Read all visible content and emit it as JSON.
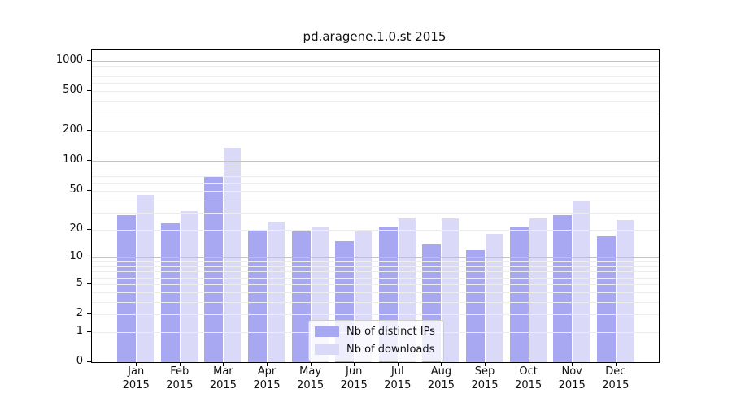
{
  "title": "pd.aragene.1.0.st 2015",
  "colors": {
    "distinct_ips_bar": "#a8a8f2",
    "downloads_bar": "#dadaf8",
    "major_gridline": "#c3c3c3",
    "minor_gridline": "#ededed",
    "axis_spine": "#000000"
  },
  "legend": {
    "items": [
      {
        "label": "Nb of distinct IPs",
        "series": "ips"
      },
      {
        "label": "Nb of downloads",
        "series": "downloads"
      }
    ]
  },
  "y_axis": {
    "tick_labels": [
      "0",
      "1",
      "2",
      "5",
      "10",
      "20",
      "50",
      "100",
      "200",
      "500",
      "1000"
    ],
    "tick_values": [
      0,
      1,
      2,
      5,
      10,
      20,
      50,
      100,
      200,
      500,
      1000
    ]
  },
  "x_axis": {
    "year": "2015",
    "months": [
      "Jan",
      "Feb",
      "Mar",
      "Apr",
      "May",
      "Jun",
      "Jul",
      "Aug",
      "Sep",
      "Oct",
      "Nov",
      "Dec"
    ]
  },
  "chart_data": {
    "type": "bar",
    "title": "pd.aragene.1.0.st 2015",
    "categories": [
      "Jan 2015",
      "Feb 2015",
      "Mar 2015",
      "Apr 2015",
      "May 2015",
      "Jun 2015",
      "Jul 2015",
      "Aug 2015",
      "Sep 2015",
      "Oct 2015",
      "Nov 2015",
      "Dec 2015"
    ],
    "series": [
      {
        "name": "Nb of distinct IPs",
        "values": [
          28,
          23,
          69,
          20,
          19,
          15,
          21,
          14,
          12,
          21,
          28,
          17
        ]
      },
      {
        "name": "Nb of downloads",
        "values": [
          45,
          31,
          135,
          24,
          21,
          19,
          26,
          26,
          18,
          26,
          39,
          25
        ]
      }
    ],
    "xlabel": "",
    "ylabel": "",
    "yscale": "log10(1+x)",
    "ylim": [
      0,
      1300
    ],
    "ytick_values": [
      0,
      1,
      2,
      5,
      10,
      20,
      50,
      100,
      200,
      500,
      1000
    ],
    "grid": true,
    "gridlines_over_bars": true,
    "legend_position": "lower center"
  }
}
